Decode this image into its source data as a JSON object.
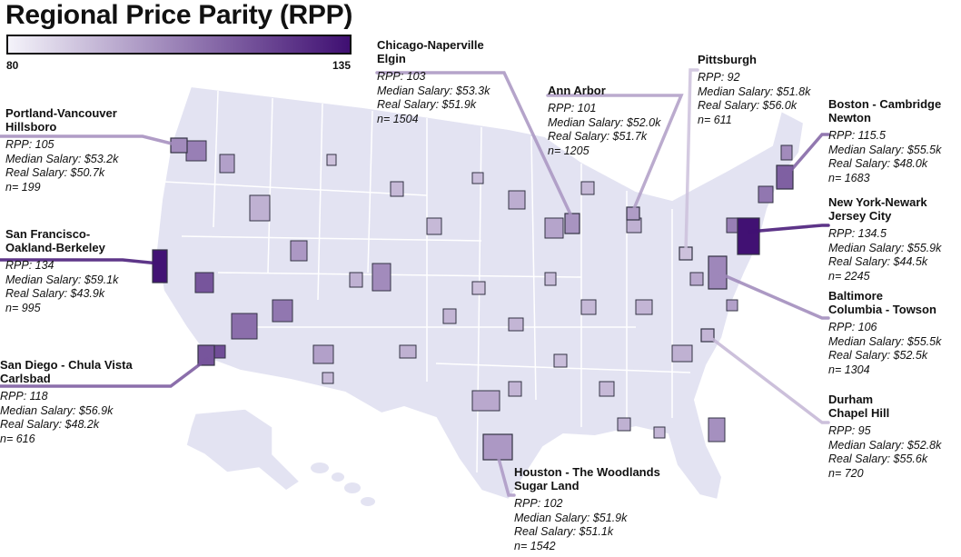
{
  "title": "Regional Price Parity (RPP)",
  "legend": {
    "min": "80",
    "max": "135",
    "color_low": "#f4f3fa",
    "color_high": "#3f0f72"
  },
  "colors": {
    "base_land": "#e3e3f2",
    "border": "#ffffff",
    "metro_stroke": "#333344"
  },
  "metros": [
    {
      "key": "chicago",
      "name": "Chicago-Naperville\nElgin",
      "rpp_label": "RPP: 103",
      "median_label": "Median Salary: $53.3k",
      "real_label": "Real Salary: $51.9k",
      "n_label": "n= 1504",
      "rpp": 103,
      "median_salary_k": 53.3,
      "real_salary_k": 51.9,
      "n": 1504
    },
    {
      "key": "ann-arbor",
      "name": "Ann Arbor",
      "rpp_label": "RPP: 101",
      "median_label": "Median Salary: $52.0k",
      "real_label": "Real Salary: $51.7k",
      "n_label": "n= 1205",
      "rpp": 101,
      "median_salary_k": 52.0,
      "real_salary_k": 51.7,
      "n": 1205
    },
    {
      "key": "pittsburgh",
      "name": "Pittsburgh",
      "rpp_label": "RPP: 92",
      "median_label": "Median Salary: $51.8k",
      "real_label": "Real Salary: $56.0k",
      "n_label": "n= 611",
      "rpp": 92,
      "median_salary_k": 51.8,
      "real_salary_k": 56.0,
      "n": 611
    },
    {
      "key": "boston",
      "name": "Boston - Cambridge\nNewton",
      "rpp_label": "RPP: 115.5",
      "median_label": "Median Salary: $55.5k",
      "real_label": "Real Salary: $48.0k",
      "n_label": "n= 1683",
      "rpp": 115.5,
      "median_salary_k": 55.5,
      "real_salary_k": 48.0,
      "n": 1683
    },
    {
      "key": "new-york",
      "name": "New York-Newark\nJersey City",
      "rpp_label": "RPP: 134.5",
      "median_label": "Median Salary: $55.9k",
      "real_label": "Real Salary: $44.5k",
      "n_label": "n= 2245",
      "rpp": 134.5,
      "median_salary_k": 55.9,
      "real_salary_k": 44.5,
      "n": 2245
    },
    {
      "key": "baltimore",
      "name": "Baltimore\nColumbia - Towson",
      "rpp_label": "RPP: 106",
      "median_label": "Median Salary: $55.5k",
      "real_label": "Real Salary: $52.5k",
      "n_label": "n= 1304",
      "rpp": 106,
      "median_salary_k": 55.5,
      "real_salary_k": 52.5,
      "n": 1304
    },
    {
      "key": "durham",
      "name": "Durham\nChapel Hill",
      "rpp_label": "RPP: 95",
      "median_label": "Median Salary: $52.8k",
      "real_label": "Real Salary: $55.6k",
      "n_label": "n= 720",
      "rpp": 95,
      "median_salary_k": 52.8,
      "real_salary_k": 55.6,
      "n": 720
    },
    {
      "key": "houston",
      "name": "Houston - The Woodlands\nSugar Land",
      "rpp_label": "RPP: 102",
      "median_label": "Median Salary: $51.9k",
      "real_label": "Real Salary: $51.1k",
      "n_label": "n= 1542",
      "rpp": 102,
      "median_salary_k": 51.9,
      "real_salary_k": 51.1,
      "n": 1542
    },
    {
      "key": "portland",
      "name": "Portland-Vancouver\nHillsboro",
      "rpp_label": "RPP: 105",
      "median_label": "Median Salary: $53.2k",
      "real_label": "Real Salary: $50.7k",
      "n_label": "n= 199",
      "rpp": 105,
      "median_salary_k": 53.2,
      "real_salary_k": 50.7,
      "n": 199
    },
    {
      "key": "san-francisco",
      "name": "San Francisco-\nOakland-Berkeley",
      "rpp_label": "RPP: 134",
      "median_label": "Median Salary: $59.1k",
      "real_label": "Real Salary: $43.9k",
      "n_label": "n= 995",
      "rpp": 134,
      "median_salary_k": 59.1,
      "real_salary_k": 43.9,
      "n": 995
    },
    {
      "key": "san-diego",
      "name": "San Diego - Chula Vista\nCarlsbad",
      "rpp_label": "RPP: 118",
      "median_label": "Median Salary: $56.9k",
      "real_label": "Real Salary: $48.2k",
      "n_label": "n= 616",
      "rpp": 118,
      "median_salary_k": 56.9,
      "real_salary_k": 48.2,
      "n": 616
    }
  ]
}
